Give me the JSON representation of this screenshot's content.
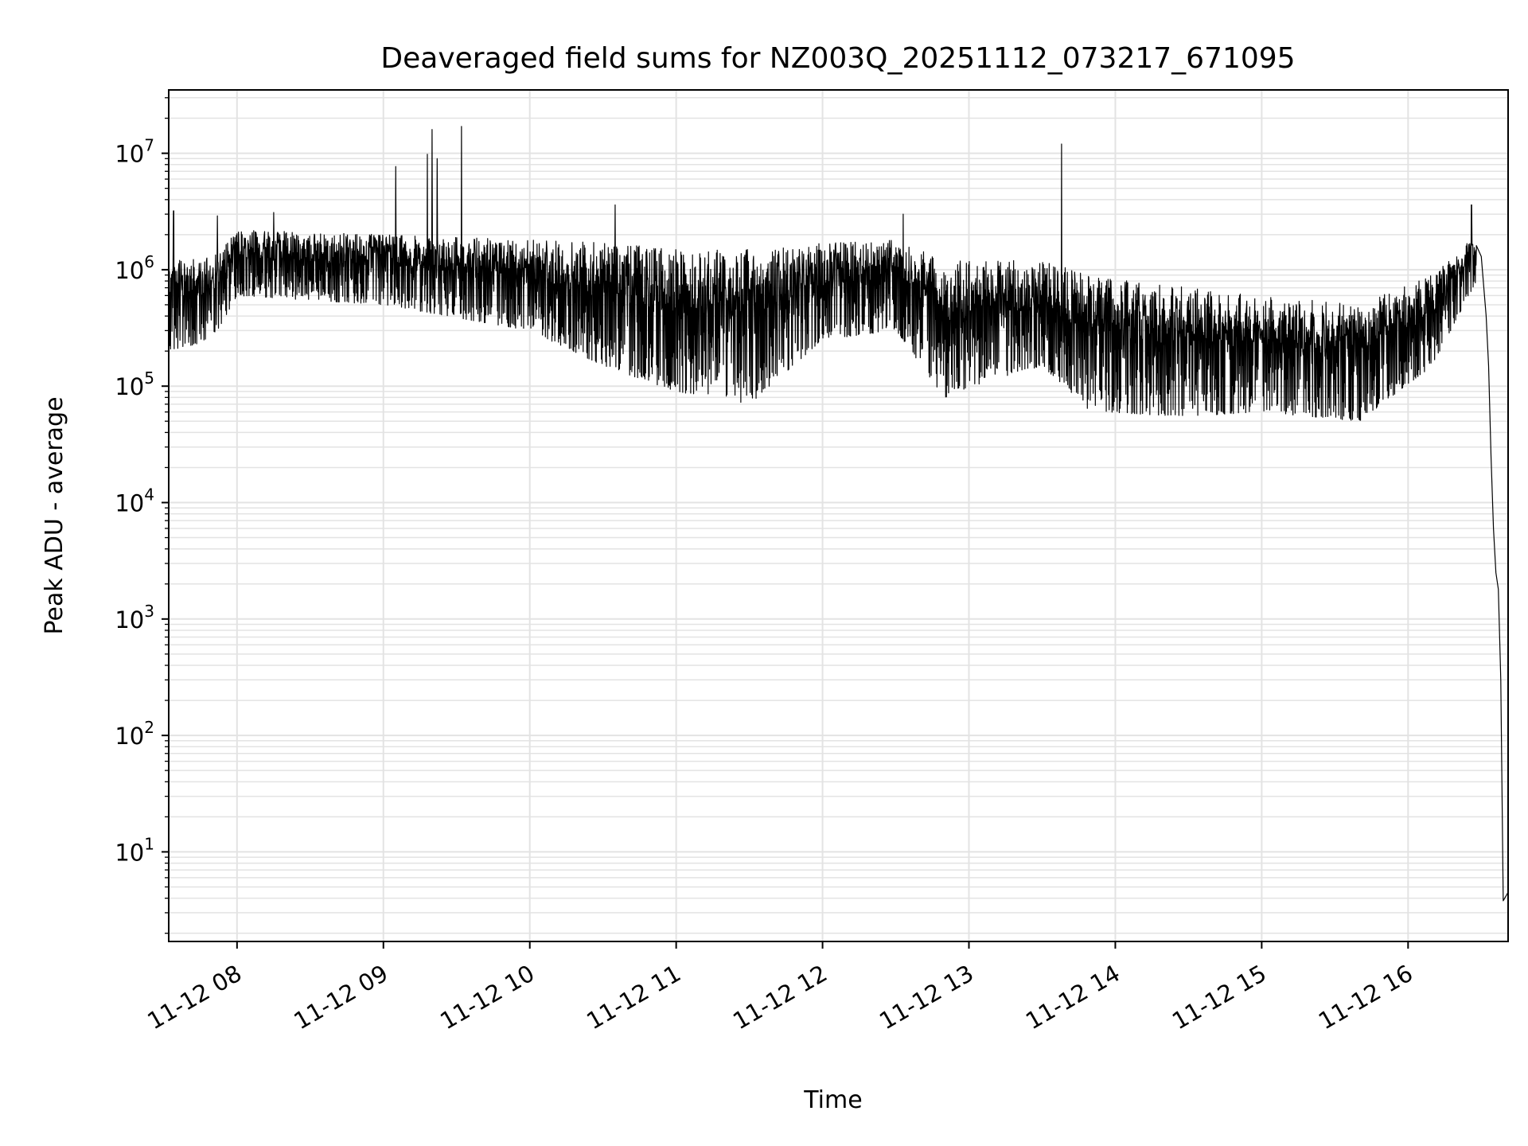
{
  "chart_data": {
    "type": "line",
    "title": "Deaveraged field sums for NZ003Q_20251112_073217_671095",
    "xlabel": "Time",
    "ylabel": "Peak ADU - average",
    "yscale": "log",
    "ylim": [
      1.7,
      35000000
    ],
    "xlim": [
      "2025-11-12 07:32",
      "2025-11-12 16:41"
    ],
    "grid": true,
    "line_color": "#000000",
    "grid_color": "#e3e3e3",
    "x_ticks": [
      {
        "t": "2025-11-12 08:00",
        "label": "11-12 08"
      },
      {
        "t": "2025-11-12 09:00",
        "label": "11-12 09"
      },
      {
        "t": "2025-11-12 10:00",
        "label": "11-12 10"
      },
      {
        "t": "2025-11-12 11:00",
        "label": "11-12 11"
      },
      {
        "t": "2025-11-12 12:00",
        "label": "11-12 12"
      },
      {
        "t": "2025-11-12 13:00",
        "label": "11-12 13"
      },
      {
        "t": "2025-11-12 14:00",
        "label": "11-12 14"
      },
      {
        "t": "2025-11-12 15:00",
        "label": "11-12 15"
      },
      {
        "t": "2025-11-12 16:00",
        "label": "11-12 16"
      }
    ],
    "y_ticks": [
      {
        "value": 10,
        "base": "10",
        "exp": "1"
      },
      {
        "value": 100,
        "base": "10",
        "exp": "2"
      },
      {
        "value": 1000,
        "base": "10",
        "exp": "3"
      },
      {
        "value": 10000,
        "base": "10",
        "exp": "4"
      },
      {
        "value": 100000,
        "base": "10",
        "exp": "5"
      },
      {
        "value": 1000000,
        "base": "10",
        "exp": "6"
      },
      {
        "value": 10000000,
        "base": "10",
        "exp": "7"
      }
    ],
    "series": [
      {
        "style": "noisy band",
        "envelope": [
          {
            "t": "2025-11-12 07:32",
            "low": 200000,
            "high": 1200000
          },
          {
            "t": "2025-11-12 07:50",
            "low": 250000,
            "high": 1300000
          },
          {
            "t": "2025-11-12 08:00",
            "low": 600000,
            "high": 2200000
          },
          {
            "t": "2025-11-12 09:00",
            "low": 500000,
            "high": 2000000
          },
          {
            "t": "2025-11-12 10:00",
            "low": 300000,
            "high": 1800000
          },
          {
            "t": "2025-11-12 10:30",
            "low": 150000,
            "high": 1700000
          },
          {
            "t": "2025-11-12 11:00",
            "low": 90000,
            "high": 1500000
          },
          {
            "t": "2025-11-12 11:30",
            "low": 70000,
            "high": 1500000
          },
          {
            "t": "2025-11-12 12:00",
            "low": 250000,
            "high": 1700000
          },
          {
            "t": "2025-11-12 12:30",
            "low": 300000,
            "high": 1800000
          },
          {
            "t": "2025-11-12 12:50",
            "low": 80000,
            "high": 1200000
          },
          {
            "t": "2025-11-12 13:30",
            "low": 150000,
            "high": 1200000
          },
          {
            "t": "2025-11-12 13:50",
            "low": 60000,
            "high": 900000
          },
          {
            "t": "2025-11-12 14:30",
            "low": 55000,
            "high": 700000
          },
          {
            "t": "2025-11-12 15:00",
            "low": 60000,
            "high": 600000
          },
          {
            "t": "2025-11-12 15:40",
            "low": 50000,
            "high": 500000
          },
          {
            "t": "2025-11-12 16:10",
            "low": 150000,
            "high": 900000
          },
          {
            "t": "2025-11-12 16:28",
            "low": 800000,
            "high": 2000000
          }
        ],
        "spikes": [
          {
            "t": "2025-11-12 07:34",
            "value": 3200000
          },
          {
            "t": "2025-11-12 07:52",
            "value": 2900000
          },
          {
            "t": "2025-11-12 08:15",
            "value": 3100000
          },
          {
            "t": "2025-11-12 09:05",
            "value": 7700000
          },
          {
            "t": "2025-11-12 09:18",
            "value": 9800000
          },
          {
            "t": "2025-11-12 09:20",
            "value": 16000000
          },
          {
            "t": "2025-11-12 09:22",
            "value": 9000000
          },
          {
            "t": "2025-11-12 09:32",
            "value": 17000000
          },
          {
            "t": "2025-11-12 10:35",
            "value": 3600000
          },
          {
            "t": "2025-11-12 12:33",
            "value": 3000000
          },
          {
            "t": "2025-11-12 13:38",
            "value": 12000000
          },
          {
            "t": "2025-11-12 16:26",
            "value": 3600000
          }
        ],
        "tail": [
          {
            "t": "2025-11-12 16:30",
            "value": 1300000
          },
          {
            "t": "2025-11-12 16:32",
            "value": 400000
          },
          {
            "t": "2025-11-12 16:33",
            "value": 150000
          },
          {
            "t": "2025-11-12 16:34",
            "value": 25000
          },
          {
            "t": "2025-11-12 16:35",
            "value": 6000
          },
          {
            "t": "2025-11-12 16:36",
            "value": 2500
          },
          {
            "t": "2025-11-12 16:37",
            "value": 1800
          },
          {
            "t": "2025-11-12 16:38",
            "value": 300
          },
          {
            "t": "2025-11-12 16:39",
            "value": 3.8
          },
          {
            "t": "2025-11-12 16:41",
            "value": 4.5
          }
        ]
      }
    ]
  }
}
